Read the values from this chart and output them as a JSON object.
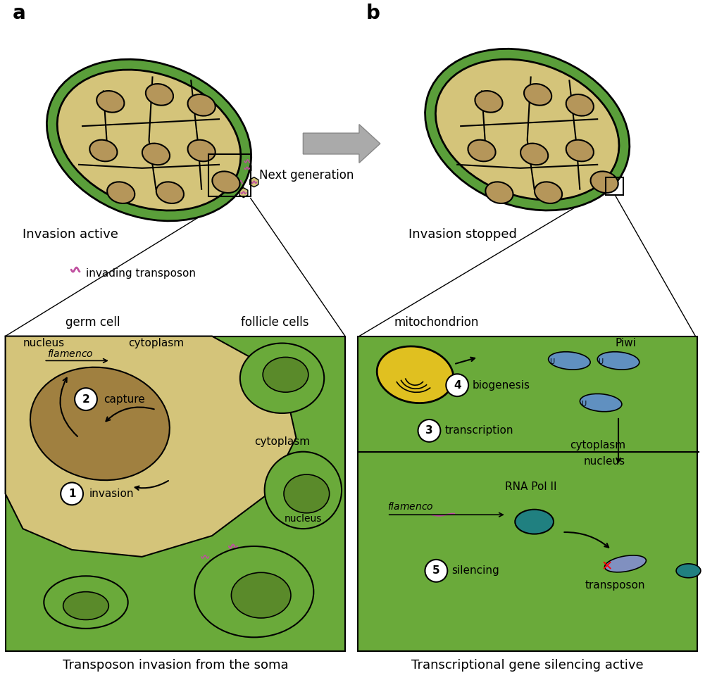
{
  "title": "",
  "bg_color": "#ffffff",
  "panel_a_label": "a",
  "panel_b_label": "b",
  "invasion_active_text": "Invasion active",
  "invasion_stopped_text": "Invasion stopped",
  "next_generation_text": "Next generation",
  "bottom_a_title": "Transposon invasion from the soma",
  "bottom_b_title": "Transcriptional gene silencing active",
  "egg_fill": "#d4c47a",
  "egg_border_outer": "#5a9e3a",
  "egg_border_inner": "#5a9e3a",
  "nucleus_fill": "#b5965a",
  "follicle_green": "#6aaa3a",
  "follicle_nucleus": "#5a8a2a",
  "germ_nucleus_fill": "#a08040",
  "germ_cytoplasm": "#d4c47a",
  "bottom_panel_bg": "#6aaa3a",
  "bottom_panel_a_germ_bg": "#d4c47a",
  "bottom_panel_a_nucleus_bg": "#a08040",
  "transposon_color": "#c050a0",
  "arrow_color": "#888888",
  "mito_fill": "#e0c020",
  "piwi_fill": "#6090c0",
  "rna_pol_fill": "#208080",
  "circle_label_color": "#000000"
}
